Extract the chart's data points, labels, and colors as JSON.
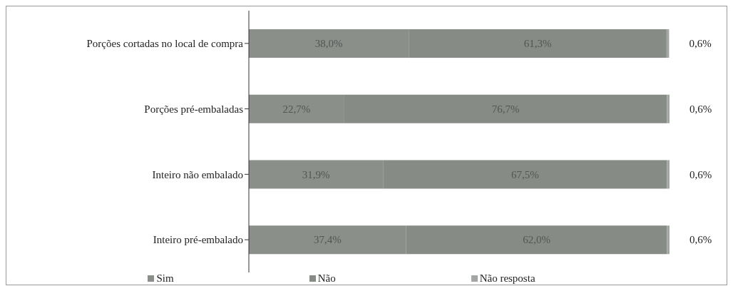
{
  "chart_data": {
    "type": "bar",
    "orientation": "horizontal",
    "stacked": true,
    "xlim": [
      0,
      100
    ],
    "categories": [
      "Porções cortadas no local de compra",
      "Porções pré-embaladas",
      "Inteiro não embalado",
      "Inteiro pré-embalado"
    ],
    "series": [
      {
        "name": "Sim",
        "color": "#8a8f8a",
        "values": [
          38.0,
          22.7,
          31.9,
          37.4
        ],
        "value_labels": [
          "38,0%",
          "22,7%",
          "31,9%",
          "37,4%"
        ]
      },
      {
        "name": "Não",
        "color": "#868b86",
        "values": [
          61.3,
          76.7,
          67.5,
          62.0
        ],
        "value_labels": [
          "61,3%",
          "76,7%",
          "67,5%",
          "62,0%"
        ]
      },
      {
        "name": "Não resposta",
        "color": "#a3a7a3",
        "values": [
          0.6,
          0.6,
          0.6,
          0.6
        ],
        "value_labels": [
          "0,6%",
          "0,6%",
          "0,6%",
          "0,6%"
        ]
      }
    ],
    "legend": "bottom"
  }
}
